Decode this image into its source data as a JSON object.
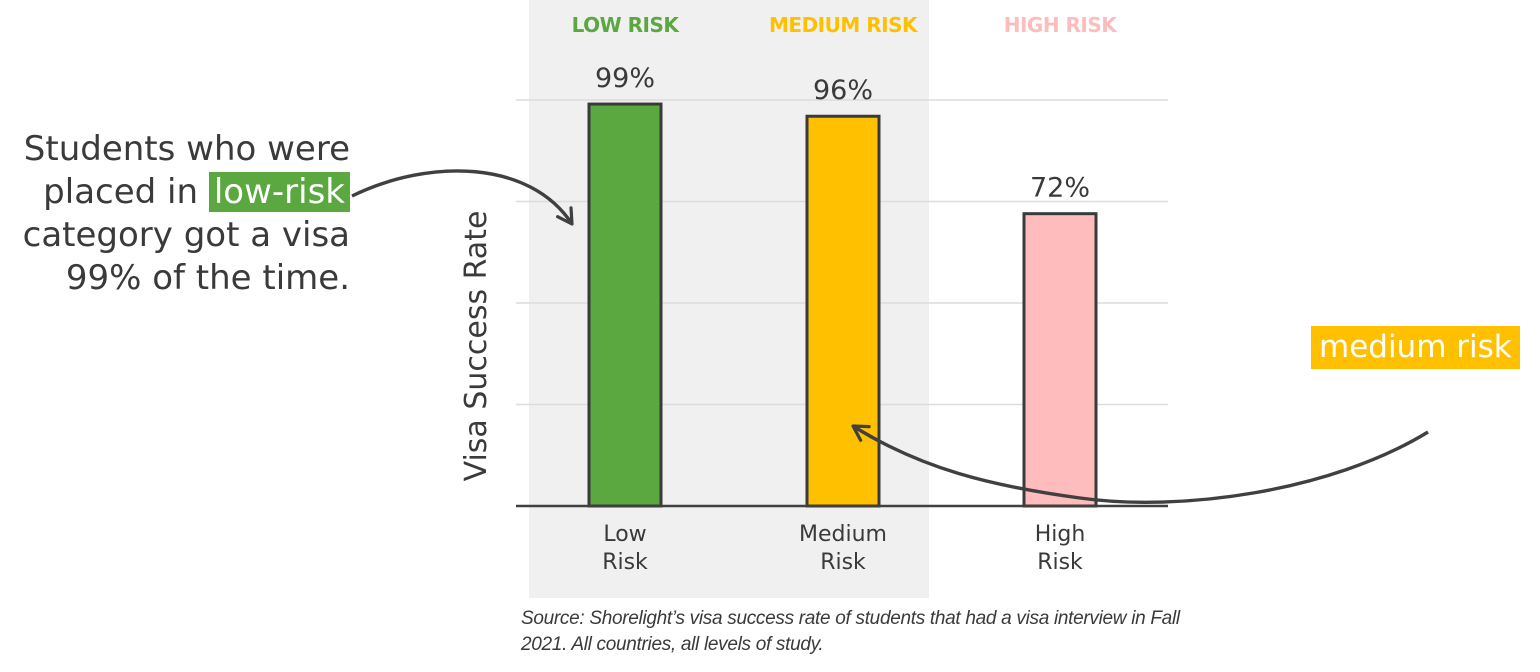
{
  "chart_data": {
    "type": "bar",
    "title": "",
    "xlabel": "",
    "ylabel": "Visa Success Rate",
    "ylim": [
      0,
      100
    ],
    "grid": true,
    "categories": [
      "Low\nRisk",
      "Medium\nRisk",
      "High\nRisk"
    ],
    "category_headers": [
      "LOW RISK",
      "MEDIUM RISK",
      "HIGH RISK"
    ],
    "values": [
      99,
      96,
      72
    ],
    "value_labels": [
      "99%",
      "96%",
      "72%"
    ],
    "bar_colors": [
      "#5aa83f",
      "#ffc000",
      "#ffbcbc"
    ],
    "header_colors": [
      "#5aa83f",
      "#ffc000",
      "#ffbcbc"
    ]
  },
  "annotations": {
    "left_prefix": "Students who were placed in ",
    "left_highlight": "low-risk",
    "left_suffix": " category got a visa 99% of the time.",
    "right_highlight": "medium risk"
  },
  "source": "Source:  Shorelight’s visa success rate of students that had a visa interview in Fall 2021. All countries, all levels of study.",
  "colors": {
    "highlight_panel": "#f0f0f0",
    "gridline": "#dcdcdc",
    "axis": "#404040",
    "bar_outline": "#3a3a3a",
    "arrow": "#404040",
    "text": "#3a3a3a"
  }
}
